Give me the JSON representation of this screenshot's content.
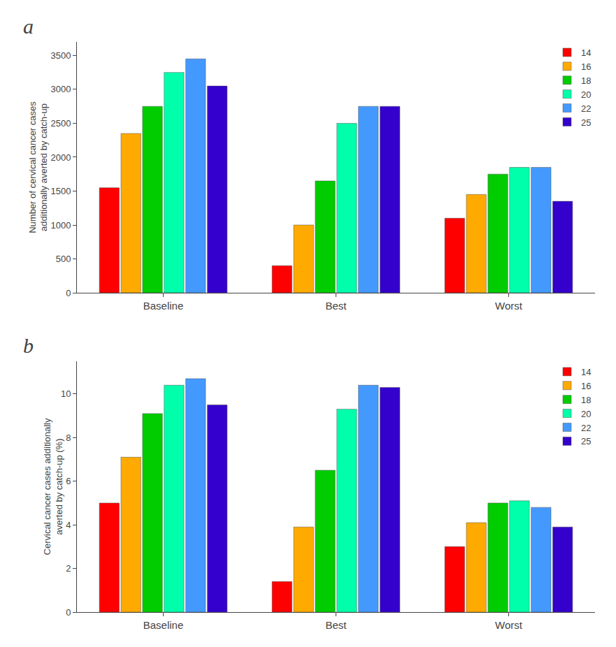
{
  "chart_data": [
    {
      "type": "bar",
      "title": "a",
      "ylabel": "Number of cervical cancer cases\nadditionally averted by catch-up",
      "categories": [
        "Baseline",
        "Best",
        "Worst"
      ],
      "series": [
        {
          "name": "14",
          "color": "#ff0000",
          "values": [
            1550,
            400,
            1100
          ]
        },
        {
          "name": "16",
          "color": "#ffaa00",
          "values": [
            2350,
            1000,
            1450
          ]
        },
        {
          "name": "18",
          "color": "#00cc00",
          "values": [
            2750,
            1650,
            1750
          ]
        },
        {
          "name": "20",
          "color": "#00ffaa",
          "values": [
            3250,
            2500,
            1850
          ]
        },
        {
          "name": "22",
          "color": "#4499ff",
          "values": [
            3450,
            2750,
            1850
          ]
        },
        {
          "name": "25",
          "color": "#3300cc",
          "values": [
            3050,
            2750,
            1350
          ]
        }
      ],
      "ylim": [
        0,
        3700
      ],
      "yticks": [
        0,
        500,
        1000,
        1500,
        2000,
        2500,
        3000,
        3500
      ],
      "grid": false,
      "legend": "upper right"
    },
    {
      "type": "bar",
      "title": "b",
      "ylabel": "Cervical cancer cases additionally\naverted by catch-up (%)",
      "categories": [
        "Baseline",
        "Best",
        "Worst"
      ],
      "series": [
        {
          "name": "14",
          "color": "#ff0000",
          "values": [
            5.0,
            1.4,
            3.0
          ]
        },
        {
          "name": "16",
          "color": "#ffaa00",
          "values": [
            7.1,
            3.9,
            4.1
          ]
        },
        {
          "name": "18",
          "color": "#00cc00",
          "values": [
            9.1,
            6.5,
            5.0
          ]
        },
        {
          "name": "20",
          "color": "#00ffaa",
          "values": [
            10.4,
            9.3,
            5.1
          ]
        },
        {
          "name": "22",
          "color": "#4499ff",
          "values": [
            10.7,
            10.4,
            4.8
          ]
        },
        {
          "name": "25",
          "color": "#3300cc",
          "values": [
            9.5,
            10.3,
            3.9
          ]
        }
      ],
      "ylim": [
        0,
        11.5
      ],
      "yticks": [
        0,
        2,
        4,
        6,
        8,
        10
      ],
      "grid": false,
      "legend": "upper right"
    }
  ]
}
